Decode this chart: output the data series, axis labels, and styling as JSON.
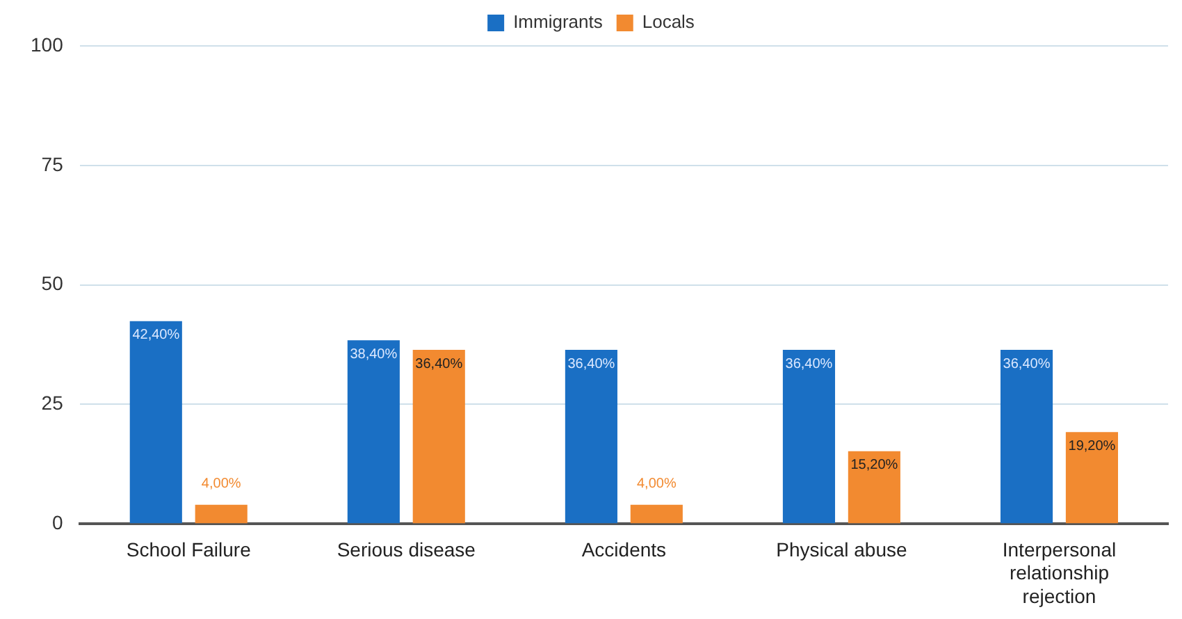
{
  "chart_data": {
    "type": "bar",
    "categories": [
      "School Failure",
      "Serious disease",
      "Accidents",
      "Physical abuse",
      "Interpersonal relationship rejection"
    ],
    "series": [
      {
        "name": "Immigrants",
        "color": "#1a6fc4",
        "values": [
          42.4,
          38.4,
          36.4,
          36.4,
          36.4
        ],
        "value_labels": [
          "42,40%",
          "38,40%",
          "36,40%",
          "36,40%",
          "36,40%"
        ]
      },
      {
        "name": "Locals",
        "color": "#f28a30",
        "values": [
          4,
          36.4,
          4,
          15.2,
          19.2
        ],
        "value_labels": [
          "4,00%",
          "36,40%",
          "4,00%",
          "15,20%",
          "19,20%"
        ]
      }
    ],
    "ylim": [
      0,
      100
    ],
    "yticks": [
      0,
      25,
      50,
      75,
      100
    ],
    "grid": "y",
    "legend": "top"
  }
}
